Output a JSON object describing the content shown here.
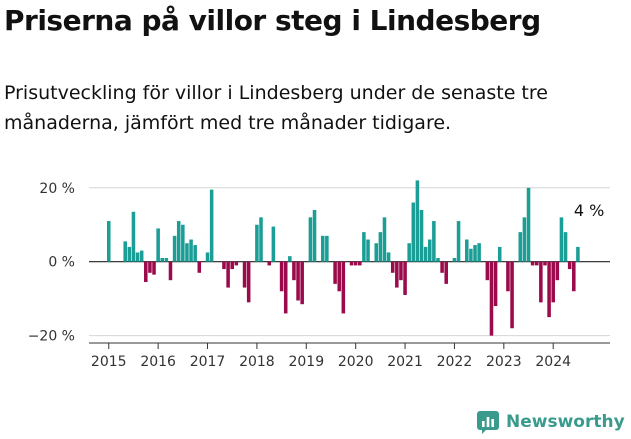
{
  "header": {
    "title": "Priserna på villor steg i Lindesberg",
    "subtitle": "Prisutveckling för villor i Lindesberg under de senaste tre månaderna, jämfört med tre månader tidigare."
  },
  "brand": {
    "name": "Newsworthy",
    "icon": "newsworthy-logo-icon",
    "color": "#3a9a8c"
  },
  "chart_data": {
    "type": "bar",
    "y_unit": "%",
    "ylim": [
      -22,
      24
    ],
    "y_ticks": [
      -20,
      0,
      20
    ],
    "y_tick_labels": [
      "−20 %",
      "0 %",
      "20 %"
    ],
    "x_ticks": [
      2015,
      2016,
      2017,
      2018,
      2019,
      2020,
      2021,
      2022,
      2023,
      2024
    ],
    "x_range": [
      2014.6,
      2025.15
    ],
    "grid": true,
    "legend": "none",
    "colors": {
      "positive": "#1a9e96",
      "negative": "#9b0a4b"
    },
    "series": [
      {
        "start": 2015.0,
        "step": 0.0833333,
        "values": [
          11,
          0,
          0,
          0,
          5.5,
          4,
          13.5,
          2.5,
          3,
          -5.5,
          -3,
          -3.5,
          9,
          1,
          1,
          -5,
          7,
          11,
          10,
          5,
          6,
          4.5,
          -3,
          0,
          2.5,
          19.5,
          0,
          0,
          -2,
          -7,
          -2,
          -1,
          0,
          -7,
          -11,
          0,
          10,
          12,
          0,
          -1,
          9.5,
          0,
          -8,
          -14,
          1.5,
          -5,
          -10.5,
          -11.5,
          0,
          12,
          14,
          0,
          7,
          7,
          0,
          -6,
          -8,
          -14,
          0,
          -1,
          -1,
          -1,
          8,
          6,
          0,
          5,
          8,
          12,
          2.5,
          -3,
          -7,
          -5,
          -9,
          5,
          16,
          22,
          14,
          4,
          6,
          11,
          1,
          -3,
          -6,
          0,
          1,
          11,
          0,
          6,
          3.5,
          4.5,
          5,
          0,
          -5,
          -20,
          -12,
          4,
          0,
          -8,
          -18,
          0,
          8,
          12,
          20,
          -1,
          -1,
          -11,
          -1,
          -15,
          -11,
          -5,
          12,
          8,
          -2,
          -8,
          4
        ]
      }
    ],
    "annotation": {
      "x": 2024.458,
      "value": 4,
      "label": "4 %"
    }
  }
}
